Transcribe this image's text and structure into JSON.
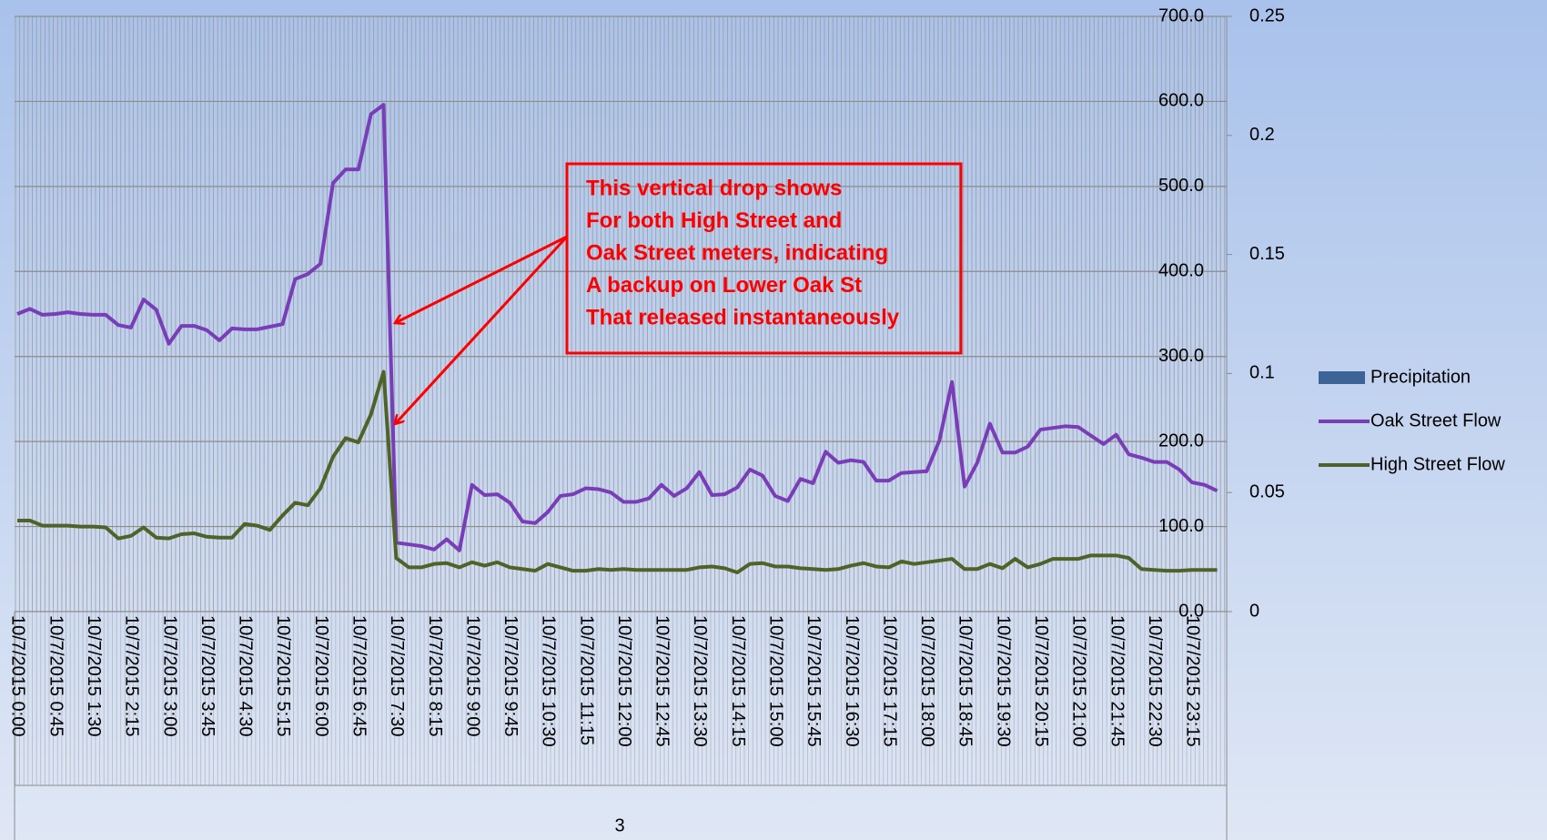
{
  "chart_data": {
    "type": "line",
    "categories": [
      "10/7/2015 0:00",
      null,
      null,
      "10/7/2015 0:45",
      null,
      null,
      "10/7/2015 1:30",
      null,
      null,
      "10/7/2015 2:15",
      null,
      null,
      "10/7/2015 3:00",
      null,
      null,
      "10/7/2015 3:45",
      null,
      null,
      "10/7/2015 4:30",
      null,
      null,
      "10/7/2015 5:15",
      null,
      null,
      "10/7/2015 6:00",
      null,
      null,
      "10/7/2015 6:45",
      null,
      null,
      "10/7/2015 7:30",
      null,
      null,
      "10/7/2015 8:15",
      null,
      null,
      "10/7/2015 9:00",
      null,
      null,
      "10/7/2015 9:45",
      null,
      null,
      "10/7/2015 10:30",
      null,
      null,
      "10/7/2015 11:15",
      null,
      null,
      "10/7/2015 12:00",
      null,
      null,
      "10/7/2015 12:45",
      null,
      null,
      "10/7/2015 13:30",
      null,
      null,
      "10/7/2015 14:15",
      null,
      null,
      "10/7/2015 15:00",
      null,
      null,
      "10/7/2015 15:45",
      null,
      null,
      "10/7/2015 16:30",
      null,
      null,
      "10/7/2015 17:15",
      null,
      null,
      "10/7/2015 18:00",
      null,
      null,
      "10/7/2015 18:45",
      null,
      null,
      "10/7/2015 19:30",
      null,
      null,
      "10/7/2015 20:15",
      null,
      null,
      "10/7/2015 21:00",
      null,
      null,
      "10/7/2015 21:45",
      null,
      null,
      "10/7/2015 22:30",
      null,
      null,
      "10/7/2015 23:15",
      null,
      null
    ],
    "x_group_label": "3",
    "series": [
      {
        "name": "Precipitation",
        "type": "bar",
        "axis": "y2",
        "color": "#3c6496",
        "values": [
          0,
          0,
          0,
          0,
          0,
          0,
          0,
          0,
          0,
          0,
          0,
          0,
          0,
          0,
          0,
          0,
          0,
          0,
          0,
          0,
          0,
          0,
          0,
          0,
          0,
          0,
          0,
          0,
          0,
          0,
          0,
          0,
          0,
          0,
          0,
          0,
          0,
          0,
          0,
          0,
          0,
          0,
          0,
          0,
          0,
          0,
          0,
          0,
          0,
          0,
          0,
          0,
          0,
          0,
          0,
          0,
          0,
          0,
          0,
          0,
          0,
          0,
          0,
          0,
          0,
          0,
          0,
          0,
          0,
          0,
          0,
          0,
          0,
          0,
          0,
          0,
          0,
          0,
          0,
          0,
          0,
          0,
          0,
          0,
          0,
          0,
          0,
          0,
          0,
          0,
          0,
          0,
          0,
          0,
          0,
          0
        ]
      },
      {
        "name": "Oak Street Flow",
        "type": "line",
        "color": "#7a3db8",
        "values": [
          350,
          356,
          349,
          350,
          352,
          350,
          349,
          349,
          337,
          334,
          367,
          355,
          315,
          336,
          336,
          331,
          319,
          333,
          332,
          332,
          335,
          338,
          391,
          397,
          409,
          504,
          520,
          520,
          585,
          596,
          81,
          79,
          77,
          73,
          85,
          72,
          149,
          137,
          138,
          128,
          106,
          104,
          117,
          136,
          138,
          145,
          144,
          140,
          129,
          129,
          133,
          149,
          136,
          145,
          164,
          137,
          138,
          146,
          167,
          160,
          136,
          130,
          156,
          151,
          188,
          175,
          178,
          176,
          154,
          154,
          163,
          164,
          165,
          201,
          270,
          147,
          175,
          221,
          187,
          187,
          194,
          214,
          216,
          218,
          217,
          207,
          197,
          208,
          185,
          181,
          176,
          176,
          167,
          152,
          149,
          142
        ]
      },
      {
        "name": "High Street Flow",
        "type": "line",
        "color": "#4f6228",
        "values": [
          107,
          107,
          101,
          101,
          101,
          100,
          100,
          99,
          86,
          89,
          99,
          87,
          86,
          91,
          92,
          88,
          87,
          87,
          103,
          101,
          96,
          113,
          128,
          125,
          145,
          182,
          204,
          199,
          232,
          282,
          63,
          52,
          52,
          56,
          57,
          52,
          58,
          54,
          58,
          52,
          50,
          48,
          56,
          52,
          48,
          48,
          50,
          49,
          50,
          49,
          49,
          49,
          49,
          49,
          52,
          53,
          51,
          46,
          56,
          57,
          53,
          53,
          51,
          50,
          49,
          50,
          54,
          57,
          53,
          52,
          59,
          56,
          58,
          60,
          62,
          50,
          50,
          56,
          51,
          62,
          52,
          56,
          62,
          62,
          62,
          66,
          66,
          66,
          63,
          50,
          49,
          48,
          48,
          49,
          49,
          49
        ]
      }
    ],
    "ylim": [
      0,
      700
    ],
    "yticks": [
      {
        "value": 0,
        "label": "0.0"
      },
      {
        "value": 100,
        "label": "100.0"
      },
      {
        "value": 200,
        "label": "200.0"
      },
      {
        "value": 300,
        "label": "300.0"
      },
      {
        "value": 400,
        "label": "400.0"
      },
      {
        "value": 500,
        "label": "500.0"
      },
      {
        "value": 600,
        "label": "600.0"
      },
      {
        "value": 700,
        "label": "700.0"
      }
    ],
    "y2lim": [
      0,
      0.25
    ],
    "y2ticks": [
      0,
      0.05,
      0.1,
      0.15,
      0.2,
      0.25
    ],
    "grid": true,
    "legend": "right",
    "annotation": [
      "This vertical drop shows",
      "For both High Street and",
      "Oak Street meters, indicating",
      "A backup on Lower Oak St",
      "That released instantaneously"
    ]
  }
}
